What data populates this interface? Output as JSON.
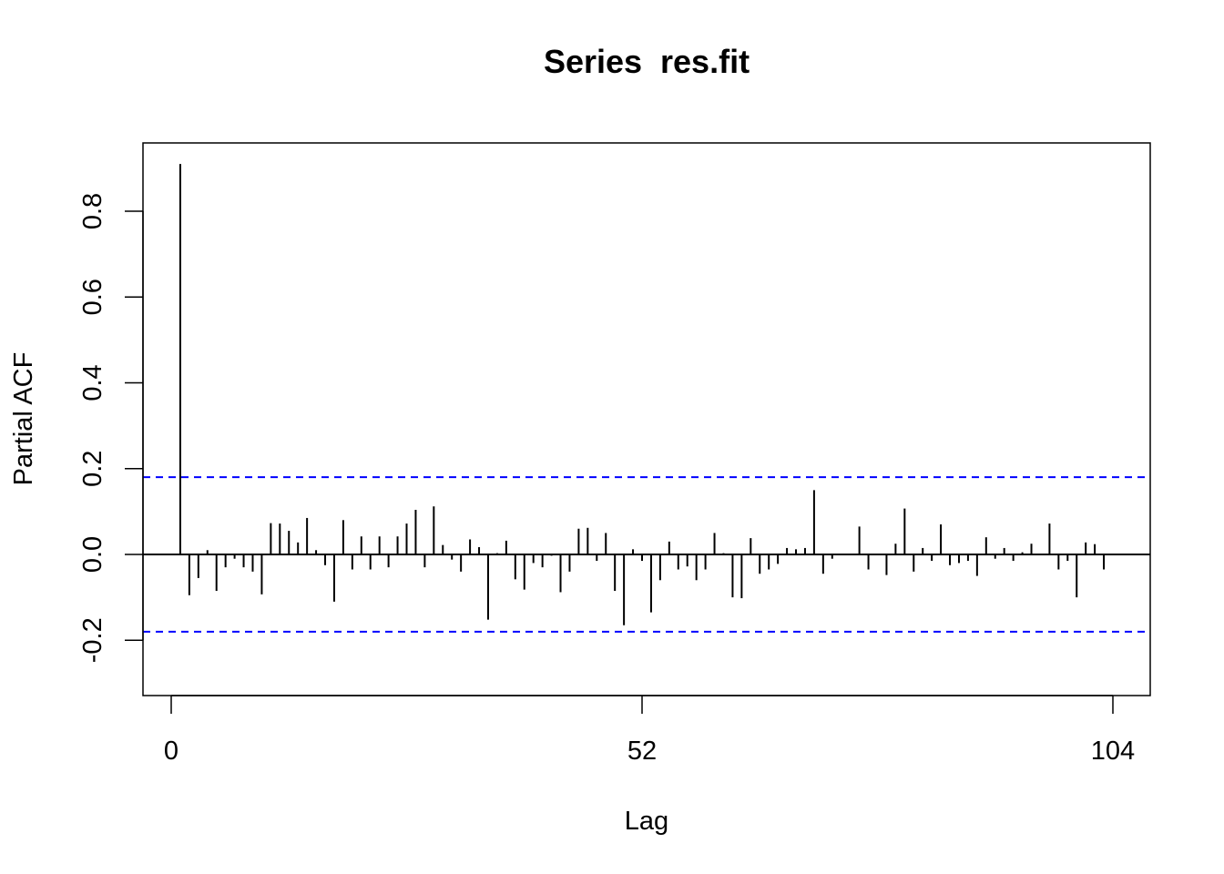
{
  "chart_data": {
    "type": "bar",
    "title": "Series  res.fit",
    "xlabel": "Lag",
    "ylabel": "Partial ACF",
    "xlim": [
      -3,
      107.5
    ],
    "ylim": [
      -0.3,
      0.9
    ],
    "x_ticks": [
      0,
      52,
      104
    ],
    "x_tick_labels": [
      "0",
      "52",
      "104"
    ],
    "y_ticks": [
      -0.2,
      0.0,
      0.2,
      0.4,
      0.6,
      0.8
    ],
    "y_tick_labels": [
      "-0.2",
      "0.0",
      "0.2",
      "0.4",
      "0.6",
      "0.8"
    ],
    "confidence_limits": [
      0.18,
      -0.18
    ],
    "confidence_line_color": "#0000ff",
    "bar_color": "#000000",
    "x": [
      1,
      2,
      3,
      4,
      5,
      6,
      7,
      8,
      9,
      10,
      11,
      12,
      13,
      14,
      15,
      16,
      17,
      18,
      19,
      20,
      21,
      22,
      23,
      24,
      25,
      26,
      27,
      28,
      29,
      30,
      31,
      32,
      33,
      34,
      35,
      36,
      37,
      38,
      39,
      40,
      41,
      42,
      43,
      44,
      45,
      46,
      47,
      48,
      49,
      50,
      51,
      52,
      53,
      54,
      55,
      56,
      57,
      58,
      59,
      60,
      61,
      62,
      63,
      64,
      65,
      66,
      67,
      68,
      69,
      70,
      71,
      72,
      73,
      74,
      75,
      76,
      77,
      78,
      79,
      80,
      81,
      82,
      83,
      84,
      85,
      86,
      87,
      88,
      89,
      90,
      91,
      92,
      93,
      94,
      95,
      96,
      97,
      98,
      99,
      100,
      101,
      102,
      103,
      104
    ],
    "values": [
      0.91,
      -0.095,
      -0.055,
      0.01,
      -0.085,
      -0.03,
      -0.01,
      -0.03,
      -0.04,
      -0.093,
      0.073,
      0.072,
      0.055,
      0.028,
      0.085,
      0.01,
      -0.025,
      -0.11,
      0.08,
      -0.035,
      0.042,
      -0.035,
      0.042,
      -0.03,
      0.042,
      0.072,
      0.104,
      -0.03,
      0.112,
      0.022,
      -0.012,
      -0.04,
      0.035,
      0.017,
      -0.152,
      0.003,
      0.032,
      -0.058,
      -0.082,
      -0.02,
      -0.03,
      -0.003,
      -0.088,
      -0.04,
      0.06,
      0.062,
      -0.015,
      0.05,
      -0.085,
      -0.165,
      0.012,
      -0.015,
      -0.135,
      -0.06,
      0.03,
      -0.035,
      -0.028,
      -0.06,
      -0.035,
      0.05,
      0.003,
      -0.1,
      -0.102,
      0.038,
      -0.045,
      -0.035,
      -0.022,
      0.015,
      0.012,
      0.015,
      0.15,
      -0.045,
      -0.01,
      0.0,
      0.0,
      0.065,
      -0.035,
      0.0,
      -0.048,
      0.025,
      0.107,
      -0.04,
      0.015,
      -0.015,
      0.07,
      -0.025,
      -0.02,
      -0.015,
      -0.05,
      0.04,
      -0.01,
      0.015,
      -0.015,
      0.005,
      0.025,
      0.002,
      0.072,
      -0.035,
      -0.015,
      -0.1,
      0.028,
      0.024,
      -0.035,
      0.0
    ]
  }
}
